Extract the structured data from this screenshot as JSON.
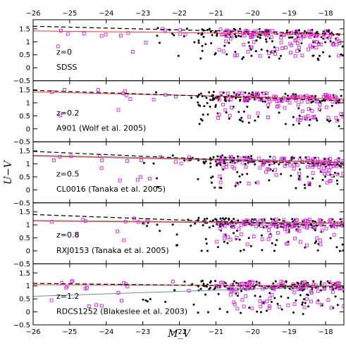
{
  "chart_data": {
    "type": "scatter",
    "xlabel": "M_V",
    "ylabel": "U−V",
    "xlim": [
      -26,
      -17.5
    ],
    "ylim": [
      -0.5,
      1.85
    ],
    "x_ticks": [
      "−26",
      "−25",
      "−24",
      "−23",
      "−22",
      "−21",
      "−20",
      "−19",
      "−18"
    ],
    "y_ticks": [
      "−0.5",
      "0",
      "0.5",
      "1",
      "1.5"
    ],
    "colors": {
      "circles": "#000000",
      "squares": "#e020e0",
      "red_line": "#ff3333",
      "blue_line": "#6a8caa",
      "dashed": "#000000"
    },
    "panels": [
      {
        "redshift": "z=0",
        "label": "SDSS",
        "dashed": [
          [
            -26,
            1.6
          ],
          [
            -17.5,
            1.3
          ]
        ],
        "red": [
          [
            -26,
            1.42
          ],
          [
            -17.5,
            1.28
          ]
        ],
        "blue": null
      },
      {
        "redshift": "z=0.2",
        "label": "A901 (Wolf et al. 2005)",
        "dashed": [
          [
            -26,
            1.48
          ],
          [
            -17.5,
            1.08
          ]
        ],
        "red": [
          [
            -26,
            1.42
          ],
          [
            -17.5,
            1.15
          ]
        ],
        "blue": null
      },
      {
        "redshift": "z=0.5",
        "label": "CL0016 (Tanaka et al. 2005)",
        "dashed": [
          [
            -26,
            1.48
          ],
          [
            -17.5,
            0.95
          ]
        ],
        "red": [
          [
            -26,
            1.3
          ],
          [
            -17.5,
            1.05
          ]
        ],
        "blue": [
          [
            -26,
            1.33
          ],
          [
            -17.5,
            1.08
          ]
        ]
      },
      {
        "redshift": "z=0.8",
        "label": "RXJ0153 (Tanaka et al. 2005)",
        "dashed": [
          [
            -26,
            1.4
          ],
          [
            -17.5,
            0.95
          ]
        ],
        "red": [
          [
            -26,
            1.15
          ],
          [
            -17.5,
            1.05
          ]
        ],
        "blue": [
          [
            -26,
            1.17
          ],
          [
            -17.5,
            1.08
          ]
        ]
      },
      {
        "redshift": "z=1.2",
        "label": "RDCS1252 (Blakeslee et al. 2003)",
        "dashed": [
          [
            -26,
            1.1
          ],
          [
            -17.5,
            0.95
          ]
        ],
        "red": [
          [
            -26,
            1.05
          ],
          [
            -17.5,
            1.0
          ]
        ],
        "blue": [
          [
            -26,
            0.6
          ],
          [
            -17.5,
            1.0
          ]
        ]
      }
    ]
  }
}
